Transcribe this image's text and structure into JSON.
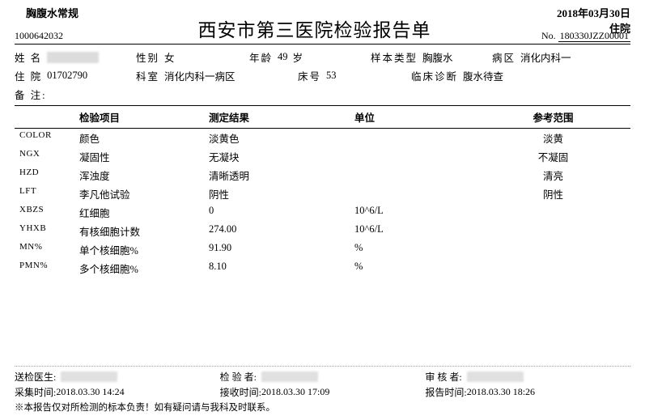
{
  "header": {
    "category": "胸腹水常规",
    "date": "2018年03月30日",
    "inout": "住院",
    "case_id": "1000642032",
    "title": "西安市第三医院检验报告单",
    "no_label": "No.",
    "report_no": "180330JZZ00001"
  },
  "meta": {
    "name_label": "姓 名",
    "sex_label": "性别",
    "sex": "女",
    "age_label": "年龄",
    "age_val": "49",
    "age_unit": "岁",
    "sample_type_label": "样本类型",
    "sample_type": "胸腹水",
    "ward_label": "病区",
    "ward": "消化内科一",
    "inpatient_label": "住 院",
    "inpatient_no": "01702790",
    "dept_label": "科室",
    "dept": "消化内科一病区",
    "bed_label": "床号",
    "bed": "53",
    "diag_label": "临床诊断",
    "diag": "腹水待查",
    "remark_label": "备 注:"
  },
  "table": {
    "headers": {
      "item": "检验项目",
      "result": "测定结果",
      "unit": "单位",
      "ref": "参考范围"
    },
    "rows": [
      {
        "code": "COLOR",
        "item": "颜色",
        "result": "淡黄色",
        "unit": "",
        "ref": "淡黄"
      },
      {
        "code": "NGX",
        "item": "凝固性",
        "result": "无凝块",
        "unit": "",
        "ref": "不凝固"
      },
      {
        "code": "HZD",
        "item": "浑浊度",
        "result": "清晰透明",
        "unit": "",
        "ref": "清亮"
      },
      {
        "code": "LFT",
        "item": "李凡他试验",
        "result": "阴性",
        "unit": "",
        "ref": "阴性"
      },
      {
        "code": "XBZS",
        "item": "红细胞",
        "result": "0",
        "unit": "10^6/L",
        "ref": ""
      },
      {
        "code": "YHXB",
        "item": "有核细胞计数",
        "result": "274.00",
        "unit": "10^6/L",
        "ref": ""
      },
      {
        "code": "MN%",
        "item": "单个核细胞%",
        "result": "91.90",
        "unit": "%",
        "ref": ""
      },
      {
        "code": "PMN%",
        "item": "多个核细胞%",
        "result": "8.10",
        "unit": "%",
        "ref": ""
      }
    ]
  },
  "footer": {
    "send_doc_label": "送检医生:",
    "inspector_label": "检 验 者:",
    "reviewer_label": "审 核 者:",
    "collect_label": "采集时间:",
    "collect_time": "2018.03.30 14:24",
    "receive_label": "接收时间:",
    "receive_time": "2018.03.30 17:09",
    "report_label": "报告时间:",
    "report_time": "2018.03.30 18:26",
    "note": "※本报告仅对所检测的标本负责！如有疑问请与我科及时联系。"
  }
}
